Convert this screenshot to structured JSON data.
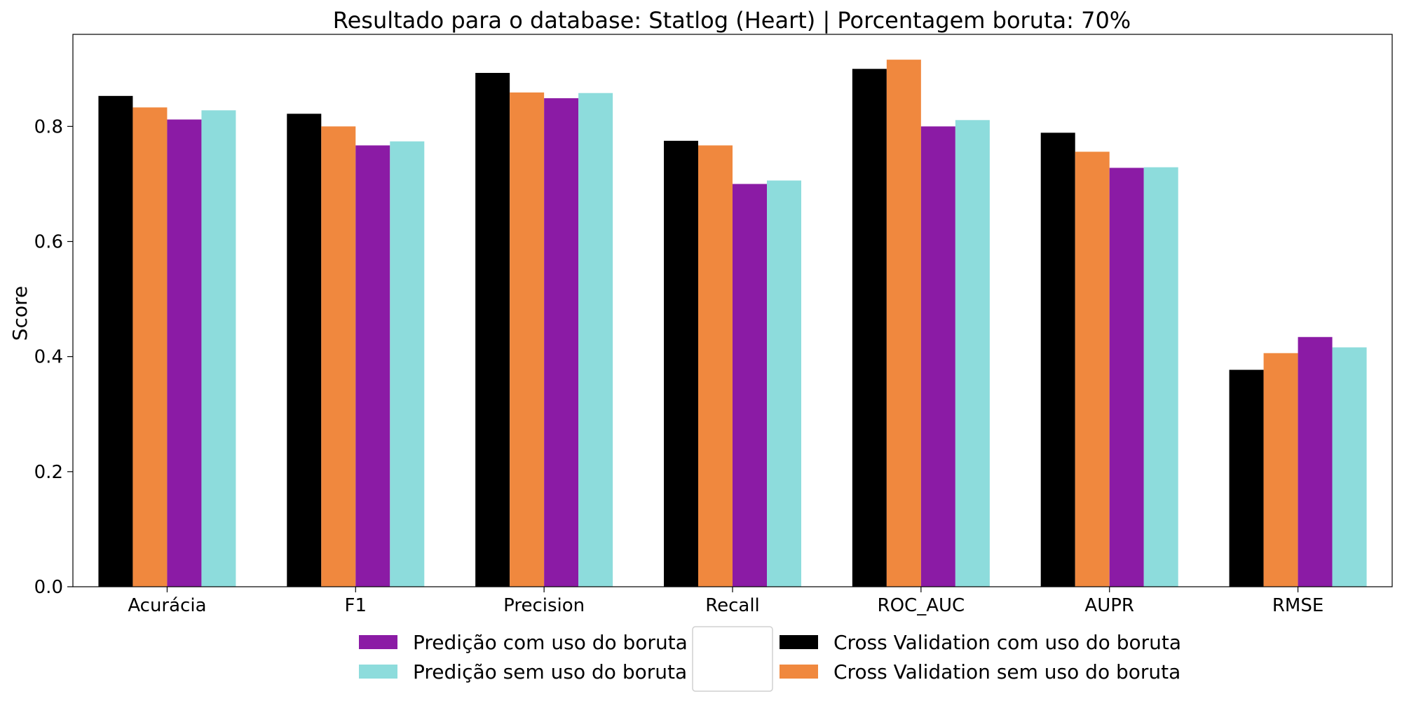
{
  "chart_data": {
    "type": "bar",
    "title": "Resultado para o database: Statlog (Heart) | Porcentagem boruta: 70%",
    "xlabel": "",
    "ylabel": "Score",
    "categories": [
      "Acurácia",
      "F1",
      "Precision",
      "Recall",
      "ROC_AUC",
      "AUPR",
      "RMSE"
    ],
    "ylim": [
      0,
      0.96
    ],
    "yticks": [
      0.0,
      0.2,
      0.4,
      0.6,
      0.8
    ],
    "ytick_labels": [
      "0.0",
      "0.2",
      "0.4",
      "0.6",
      "0.8"
    ],
    "grid": false,
    "legend_position": "bottom-center",
    "series": [
      {
        "name": "Cross Validation com uso do boruta",
        "color": "#000000",
        "values": [
          0.853,
          0.822,
          0.893,
          0.775,
          0.9,
          0.789,
          0.377
        ]
      },
      {
        "name": "Cross Validation sem uso do boruta",
        "color": "#F0883E",
        "values": [
          0.833,
          0.8,
          0.859,
          0.767,
          0.916,
          0.756,
          0.406
        ]
      },
      {
        "name": "Predição com uso do boruta",
        "color": "#8B1BA5",
        "values": [
          0.812,
          0.767,
          0.849,
          0.7,
          0.8,
          0.728,
          0.434
        ]
      },
      {
        "name": "Predição sem uso do boruta",
        "color": "#8DDCDC",
        "values": [
          0.828,
          0.774,
          0.858,
          0.706,
          0.811,
          0.729,
          0.416
        ]
      }
    ],
    "legend": {
      "left_column": [
        "Predição com uso do boruta",
        "Predição sem uso do boruta"
      ],
      "right_column": [
        "Cross Validation com uso do boruta",
        "Cross Validation sem uso do boruta"
      ]
    }
  }
}
